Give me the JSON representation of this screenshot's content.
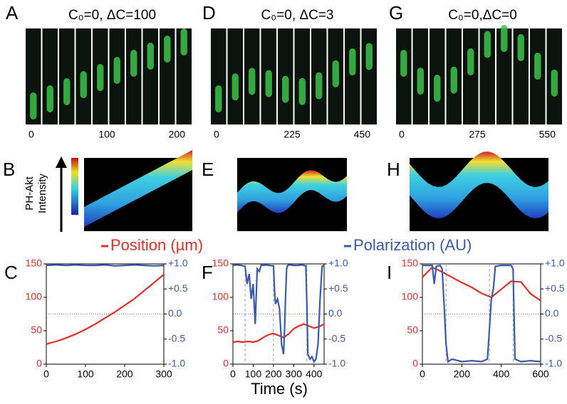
{
  "strips": [
    {
      "letter": "A",
      "title": "C₀=0, ΔC=100",
      "ticks": [
        0,
        100,
        200
      ]
    },
    {
      "letter": "D",
      "title": "C₀=0, ΔC=3",
      "ticks": [
        0,
        225,
        450
      ]
    },
    {
      "letter": "G",
      "title": "C₀=0,ΔC=0",
      "ticks": [
        0,
        275,
        550
      ]
    }
  ],
  "kymographs": {
    "letters": [
      "B",
      "E",
      "H"
    ],
    "colorbar_label": [
      "PH-Akt",
      "Intensity"
    ]
  },
  "x_label": "Time (s)",
  "chart_data": [
    {
      "type": "line",
      "panel_label": "C",
      "xlim": [
        0,
        300
      ],
      "xticks": [
        0,
        100,
        200,
        300
      ],
      "ylim": [
        0,
        150
      ],
      "yticks": [
        0,
        50,
        100,
        150
      ],
      "y2lim": [
        -1,
        1
      ],
      "y2ticks": [
        {
          "value": 1,
          "label": "+1.0"
        },
        {
          "value": 0.5,
          "label": "+0.5"
        },
        {
          "value": 0,
          "label": "0.0"
        },
        {
          "value": -0.5,
          "label": "-0.5"
        },
        {
          "value": -1,
          "label": "-1.0"
        }
      ],
      "zero_line": 0,
      "vlines": [],
      "series": [
        {
          "name": "Position (µm)",
          "color": "#e0302a",
          "x": [
            0,
            25,
            50,
            75,
            100,
            125,
            150,
            175,
            200,
            225,
            250,
            275,
            300
          ],
          "values": [
            30,
            34,
            39,
            45,
            52,
            60,
            69,
            78,
            88,
            98,
            110,
            122,
            134
          ]
        },
        {
          "name": "Polarization (AU)",
          "color": "#3a5ba8",
          "axis": "y2",
          "x": [
            0,
            25,
            50,
            75,
            100,
            125,
            150,
            175,
            200,
            225,
            250,
            275,
            300
          ],
          "values": [
            0.97,
            0.98,
            0.97,
            0.98,
            0.97,
            0.97,
            0.98,
            0.96,
            0.97,
            0.98,
            0.97,
            0.96,
            0.97
          ]
        }
      ]
    },
    {
      "type": "line",
      "panel_label": "F",
      "xlim": [
        0,
        450
      ],
      "xticks": [
        0,
        100,
        200,
        300,
        400
      ],
      "ylim": [
        0,
        150
      ],
      "yticks": [
        0,
        50,
        100,
        150
      ],
      "y2lim": [
        -1,
        1
      ],
      "y2ticks": [
        {
          "value": 1,
          "label": "+1.0"
        },
        {
          "value": 0.5,
          "label": "+0.5"
        },
        {
          "value": 0,
          "label": "0.0"
        },
        {
          "value": -0.5,
          "label": "-0.5"
        },
        {
          "value": -1,
          "label": "-1.0"
        }
      ],
      "zero_line": 0,
      "vlines": [
        60,
        200,
        365
      ],
      "series": [
        {
          "color": "#e0302a",
          "x": [
            0,
            25,
            50,
            75,
            100,
            125,
            150,
            175,
            200,
            225,
            250,
            275,
            300,
            325,
            350,
            375,
            400,
            425,
            450
          ],
          "values": [
            33,
            34,
            33,
            34,
            33,
            35,
            40,
            44,
            46,
            43,
            40,
            45,
            53,
            57,
            60,
            57,
            54,
            56,
            60
          ]
        },
        {
          "color": "#3a5ba8",
          "axis": "y2",
          "x": [
            0,
            20,
            40,
            60,
            70,
            80,
            90,
            100,
            110,
            120,
            130,
            140,
            150,
            160,
            180,
            200,
            205,
            210,
            220,
            230,
            240,
            250,
            255,
            260,
            265,
            270,
            280,
            300,
            320,
            340,
            360,
            365,
            370,
            380,
            390,
            400,
            410,
            420,
            430,
            440,
            450
          ],
          "values": [
            0.97,
            0.98,
            0.97,
            0.95,
            0.6,
            0.8,
            0.3,
            0.6,
            -0.2,
            0.9,
            0.85,
            0.98,
            0.97,
            0.98,
            0.97,
            0.96,
            0.5,
            0.2,
            0.3,
            0.1,
            -0.6,
            -0.8,
            -0.3,
            0.4,
            0.9,
            0.97,
            0.98,
            0.97,
            0.97,
            0.98,
            0.96,
            0.2,
            -0.8,
            -0.9,
            -0.85,
            -0.95,
            -0.9,
            -0.6,
            0.3,
            0.95,
            0.97
          ]
        }
      ]
    },
    {
      "type": "line",
      "panel_label": "I",
      "xlim": [
        0,
        600
      ],
      "xticks": [
        0,
        200,
        400,
        600
      ],
      "ylim": [
        0,
        150
      ],
      "yticks": [
        0,
        50,
        100,
        150
      ],
      "y2lim": [
        -1,
        1
      ],
      "y2ticks": [
        {
          "value": 1,
          "label": "+1.0"
        },
        {
          "value": 0.5,
          "label": "+0.5"
        },
        {
          "value": 0,
          "label": "0.0"
        },
        {
          "value": -0.5,
          "label": "-0.5"
        },
        {
          "value": -1,
          "label": "-1.0"
        }
      ],
      "zero_line": 0,
      "vlines": [
        120,
        340,
        460
      ],
      "series": [
        {
          "color": "#e0302a",
          "x": [
            0,
            50,
            100,
            150,
            200,
            250,
            300,
            350,
            400,
            450,
            500,
            550,
            600
          ],
          "values": [
            130,
            145,
            138,
            130,
            122,
            115,
            106,
            100,
            112,
            124,
            123,
            105,
            95
          ]
        },
        {
          "color": "#3a5ba8",
          "axis": "y2",
          "x": [
            0,
            50,
            60,
            70,
            90,
            100,
            110,
            120,
            130,
            150,
            200,
            250,
            300,
            330,
            340,
            350,
            360,
            370,
            400,
            450,
            460,
            470,
            500,
            550,
            600
          ],
          "values": [
            0.97,
            0.97,
            0.6,
            0.95,
            0.97,
            0.9,
            0.2,
            -0.6,
            -0.95,
            -0.9,
            -0.95,
            -0.93,
            -0.95,
            -0.9,
            -0.3,
            0.3,
            0.5,
            0.95,
            0.97,
            0.97,
            0.9,
            -0.9,
            -0.95,
            -0.93,
            -0.95
          ]
        }
      ]
    }
  ]
}
